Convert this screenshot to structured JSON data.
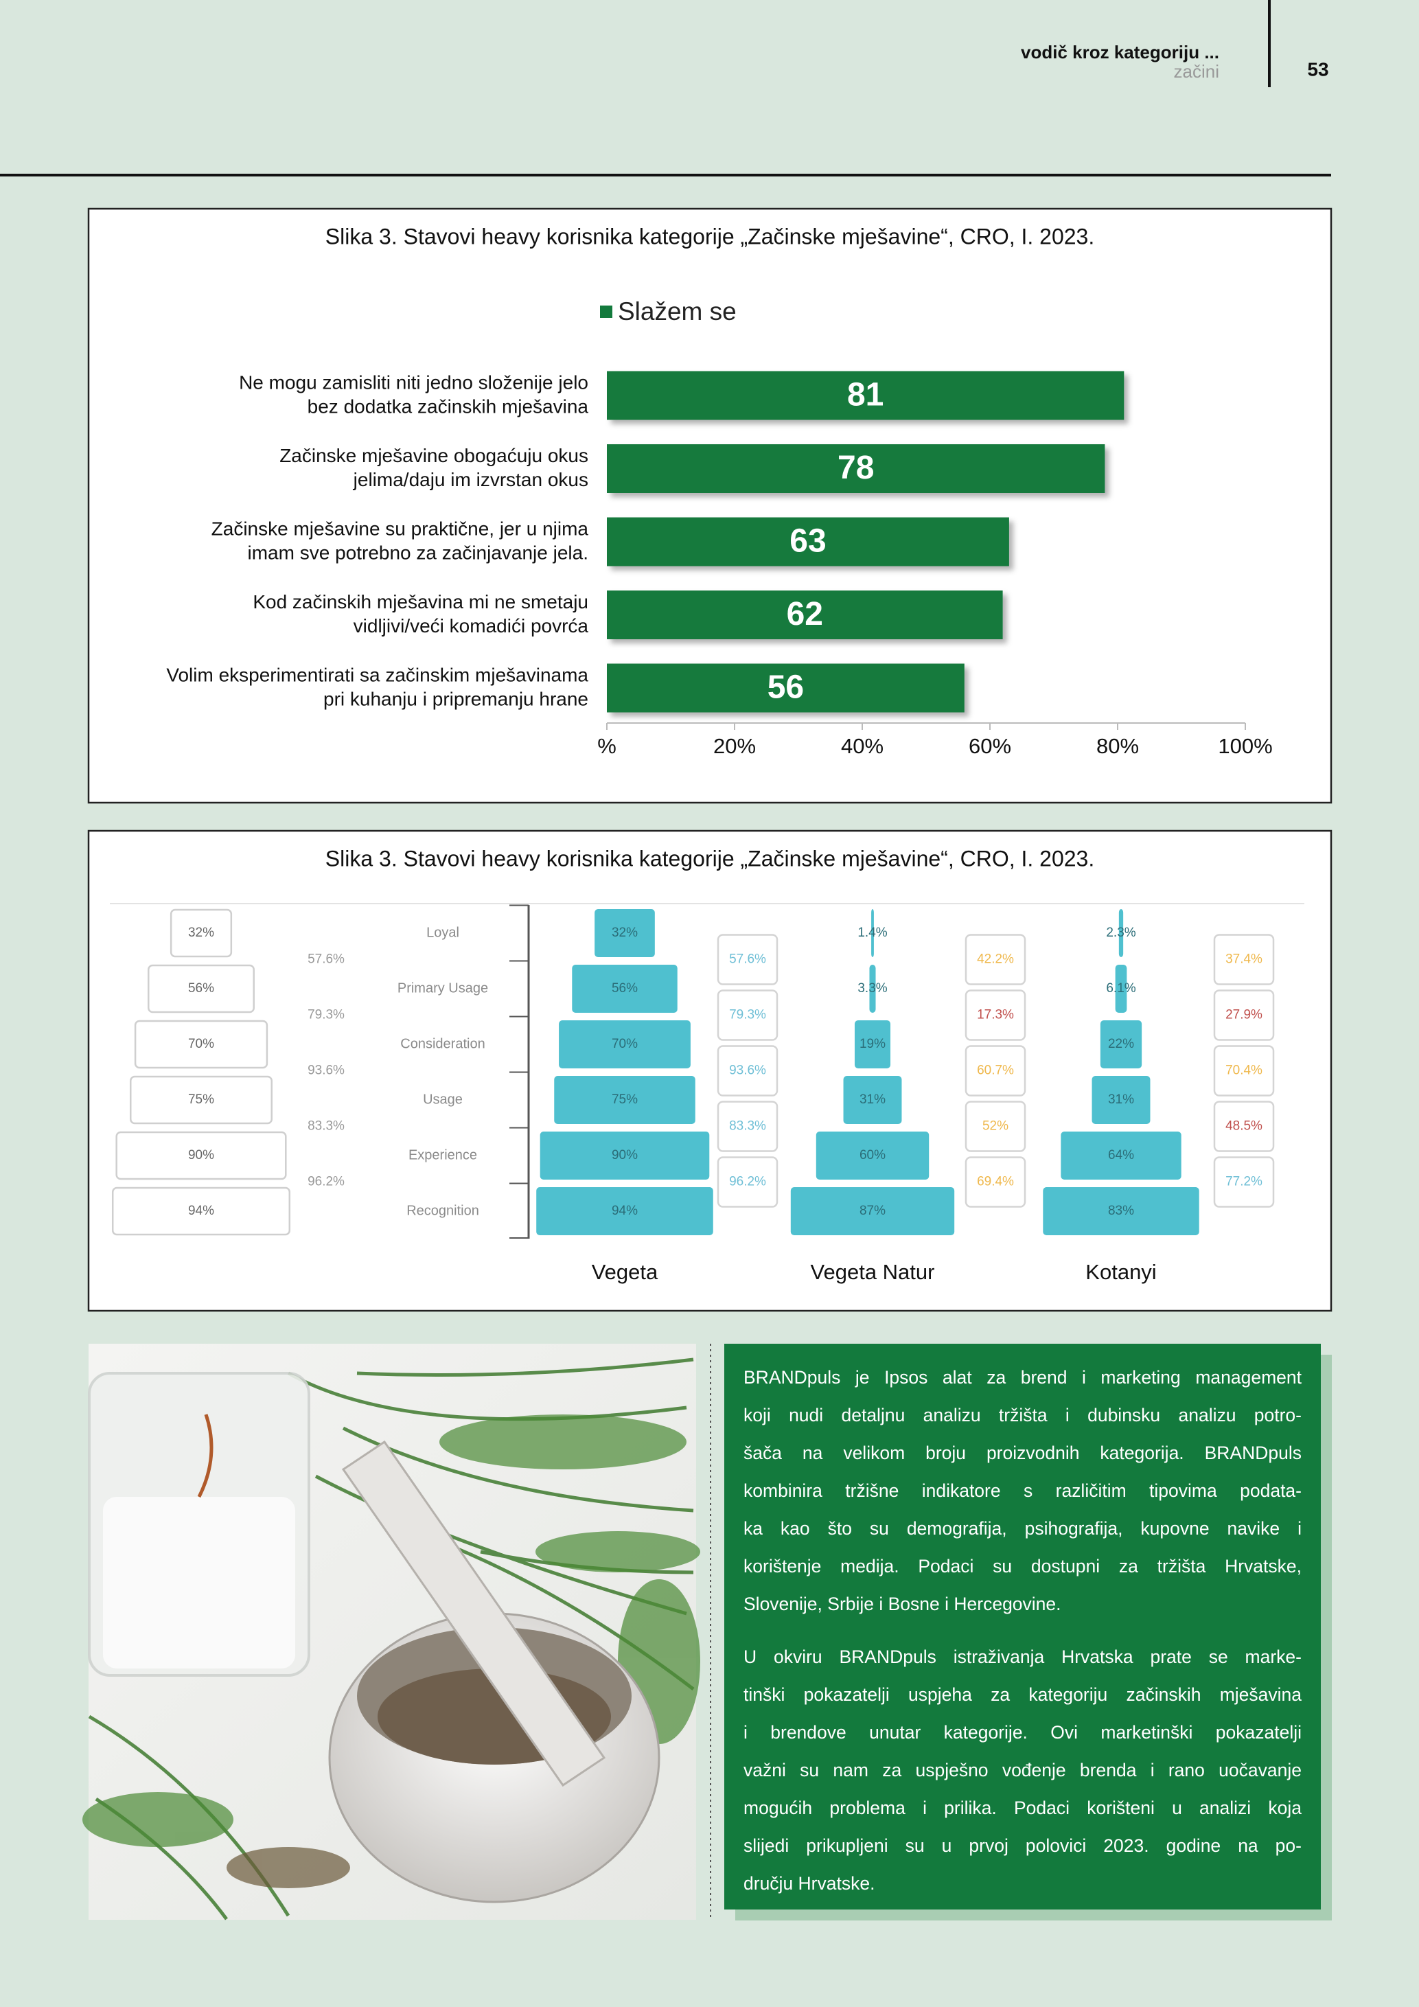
{
  "header": {
    "title": "vodič kroz kategoriju ...",
    "subtitle": "začini",
    "page": "53"
  },
  "chart_data": [
    {
      "type": "bar",
      "orientation": "horizontal",
      "title": "Slika 3. Stavovi heavy korisnika kategorije „Začinske mješavine“, CRO, I. 2023.",
      "categories": [
        [
          "Ne mogu zamisliti niti jedno složenije jelo",
          "bez dodatka začinskih mješavina"
        ],
        [
          "Začinske mješavine obogaćuju okus",
          "jelima/daju im izvrstan okus"
        ],
        [
          "Začinske mješavine su praktične, jer u njima",
          "imam sve potrebno za začinjavanje jela."
        ],
        [
          "Kod začinskih mješavina mi ne smetaju",
          "vidljivi/veći komadići povrća"
        ],
        [
          "Volim eksperimentirati sa začinskim mješavinama",
          "pri kuhanju i pripremanju hrane"
        ]
      ],
      "series": [
        {
          "name": "Slažem se",
          "color": "#137a3d",
          "values": [
            81,
            78,
            63,
            62,
            56
          ]
        }
      ],
      "xlim": [
        0,
        100
      ],
      "xticks": [
        {
          "value": 0,
          "label": "%"
        },
        {
          "value": 20,
          "label": "20%"
        },
        {
          "value": 40,
          "label": "40%"
        },
        {
          "value": 60,
          "label": "60%"
        },
        {
          "value": 80,
          "label": "80%"
        },
        {
          "value": 100,
          "label": "100%"
        }
      ]
    },
    {
      "type": "funnel",
      "title": "Slika 3. Stavovi heavy korisnika kategorije „Začinske mješavine“, CRO, I. 2023.",
      "stages": [
        "Loyal",
        "Primary Usage",
        "Consideration",
        "Usage",
        "Experience",
        "Recognition"
      ],
      "xlim": [
        0,
        100
      ],
      "series": [
        {
          "name": "Vegeta",
          "color": "#4fc0cf",
          "values": [
            32,
            56,
            70,
            75,
            90,
            94
          ],
          "value_labels": [
            "32%",
            "56%",
            "70%",
            "75%",
            "90%",
            "94%"
          ],
          "conversion": [
            57.6,
            79.3,
            93.6,
            83.3,
            96.2
          ],
          "conversion_labels": [
            "57.6%",
            "79.3%",
            "93.6%",
            "83.3%",
            "96.2%"
          ],
          "conversion_colors": [
            "#6fbfd6",
            "#6fbfd6",
            "#6fbfd6",
            "#6fbfd6",
            "#6fbfd6"
          ]
        },
        {
          "name": "Vegeta Natur",
          "color": "#4fc0cf",
          "values": [
            1.4,
            3.3,
            19,
            31,
            60,
            87
          ],
          "value_labels": [
            "1.4%",
            "3.3%",
            "19%",
            "31%",
            "60%",
            "87%"
          ],
          "conversion": [
            42.2,
            17.3,
            60.7,
            52,
            69.4
          ],
          "conversion_labels": [
            "42.2%",
            "17.3%",
            "60.7%",
            "52%",
            "69.4%"
          ],
          "conversion_colors": [
            "#efb84c",
            "#c0504d",
            "#efb84c",
            "#efb84c",
            "#efb84c"
          ]
        },
        {
          "name": "Kotanyi",
          "color": "#4fc0cf",
          "values": [
            2.3,
            6.1,
            22,
            31,
            64,
            83
          ],
          "value_labels": [
            "2.3%",
            "6.1%",
            "22%",
            "31%",
            "64%",
            "83%"
          ],
          "conversion": [
            37.4,
            27.9,
            70.4,
            48.5,
            77.2
          ],
          "conversion_labels": [
            "37.4%",
            "27.9%",
            "70.4%",
            "48.5%",
            "77.2%"
          ],
          "conversion_colors": [
            "#efb84c",
            "#c0504d",
            "#efb84c",
            "#c0504d",
            "#6fbfd6"
          ]
        }
      ]
    }
  ],
  "text_box": {
    "paragraphs": [
      [
        "BRANDpuls je Ipsos alat za brend i marketing management",
        "koji nudi detaljnu analizu tržišta i dubinsku analizu potro-",
        "šača na velikom broju proizvodnih kategorija. BRANDpuls",
        "kombinira tržišne indikatore s različitim tipovima podata-",
        "ka kao što su demografija, psihografija, kupovne navike i",
        "korištenje medija. Podaci su dostupni za tržišta Hrvatske,",
        "Slovenije, Srbije i Bosne i Hercegovine."
      ],
      [
        "U okviru BRANDpuls istraživanja Hrvatska prate se marke-",
        "tinški pokazatelji uspjeha za kategoriju začinskih mješavina",
        "i brendove unutar kategorije. Ovi marketinški pokazatelji",
        "važni su nam za uspješno vođenje brenda i rano uočavanje",
        "mogućih problema i prilika. Podaci korišteni u analizi koja",
        "slijedi prikupljeni su u prvoj polovici 2023. godine na po-",
        "dručju Hrvatske."
      ]
    ]
  }
}
